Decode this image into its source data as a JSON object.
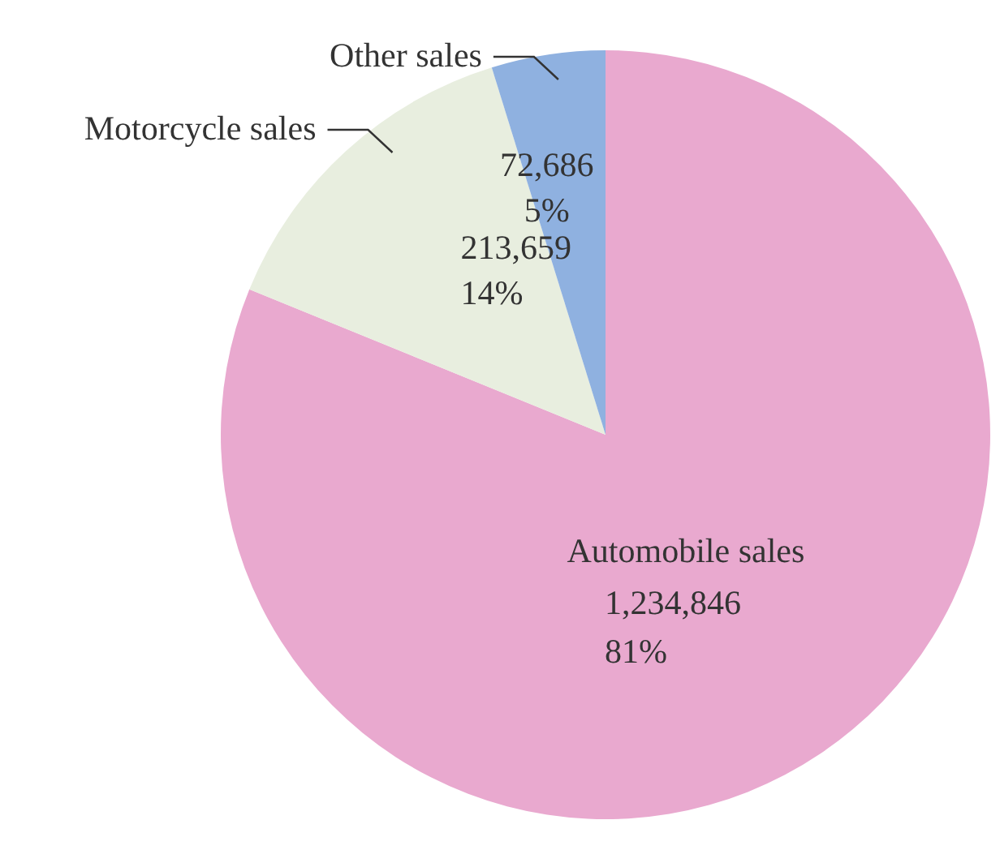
{
  "chart_data": {
    "type": "pie",
    "categories": [
      "Automobile sales",
      "Motorcycle sales",
      "Other sales"
    ],
    "values": [
      1234846,
      213659,
      72686
    ],
    "colors": [
      "#e9a9cf",
      "#e8eedf",
      "#8fb1e0"
    ],
    "value_labels": [
      "1,234,846\n81%",
      "213,659\n14%",
      "72,686\n5%"
    ]
  }
}
